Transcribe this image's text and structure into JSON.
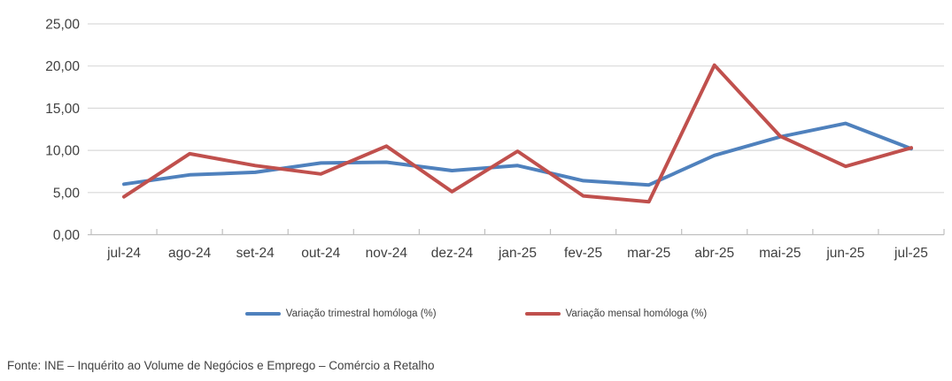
{
  "chart_data": {
    "type": "line",
    "title": "",
    "categories": [
      "jul-24",
      "ago-24",
      "set-24",
      "out-24",
      "nov-24",
      "dez-24",
      "jan-25",
      "fev-25",
      "mar-25",
      "abr-25",
      "mai-25",
      "jun-25",
      "jul-25"
    ],
    "series": [
      {
        "id": "trimestral",
        "name": "Variação trimestral homóloga (%)",
        "color": "#4F81BD",
        "values": [
          6.0,
          7.1,
          7.4,
          8.5,
          8.6,
          7.6,
          8.2,
          6.4,
          5.9,
          9.4,
          11.6,
          13.2,
          10.2
        ]
      },
      {
        "id": "mensal",
        "name": "Variação mensal homóloga (%)",
        "color": "#C0504D",
        "values": [
          4.5,
          9.6,
          8.2,
          7.2,
          10.5,
          5.1,
          9.9,
          4.6,
          3.9,
          20.1,
          11.7,
          8.1,
          10.3
        ]
      }
    ],
    "y_ticks": [
      {
        "value": 0,
        "label": "0,00"
      },
      {
        "value": 5,
        "label": "5,00"
      },
      {
        "value": 10,
        "label": "10,00"
      },
      {
        "value": 15,
        "label": "15,00"
      },
      {
        "value": 20,
        "label": "20,00"
      },
      {
        "value": 25,
        "label": "25,00"
      }
    ],
    "ylim": [
      0,
      25
    ],
    "xlabel": "",
    "ylabel": "",
    "grid": true,
    "legend_position": "bottom"
  },
  "colors": {
    "gridline": "#D9D9D9",
    "axis": "#BFBFBF",
    "tick_label": "#404040"
  },
  "footer": {
    "source_text": "Fonte: INE – Inquérito ao Volume de Negócios e Emprego – Comércio a Retalho"
  }
}
